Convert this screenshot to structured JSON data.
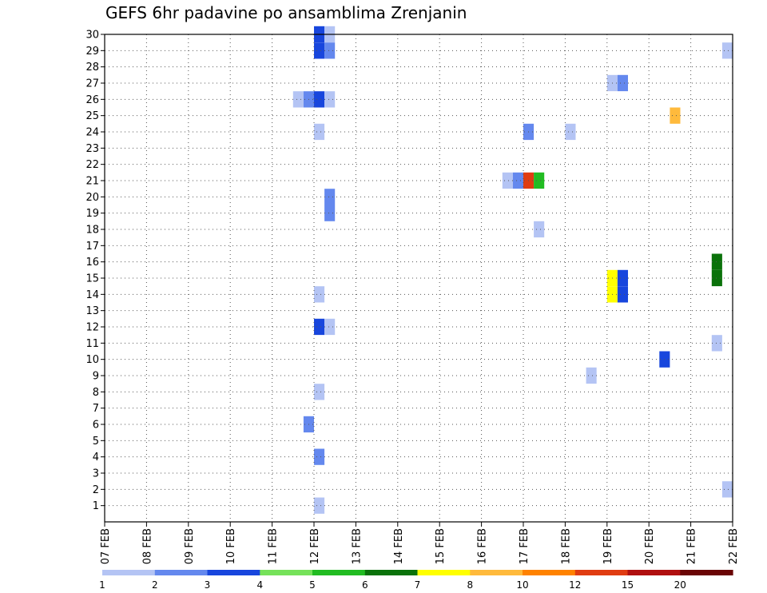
{
  "chart_data": {
    "type": "heatmap",
    "title": "GEFS 6hr padavine po ansamblima Zrenjanin",
    "x_tick_labels": [
      "07 FEB",
      "08 FEB",
      "09 FEB",
      "10 FEB",
      "11 FEB",
      "12 FEB",
      "13 FEB",
      "14 FEB",
      "15 FEB",
      "16 FEB",
      "17 FEB",
      "18 FEB",
      "19 FEB",
      "20 FEB",
      "21 FEB",
      "22 FEB"
    ],
    "y_tick_labels": [
      "1",
      "2",
      "3",
      "4",
      "5",
      "6",
      "7",
      "8",
      "9",
      "10",
      "11",
      "12",
      "13",
      "14",
      "15",
      "16",
      "17",
      "18",
      "19",
      "20",
      "21",
      "22",
      "23",
      "24",
      "25",
      "26",
      "27",
      "28",
      "29",
      "30"
    ],
    "x_range_days": [
      0,
      15
    ],
    "y_range_members": [
      0,
      30
    ],
    "grid": true,
    "colorbar": {
      "labels": [
        "1",
        "2",
        "3",
        "4",
        "5",
        "6",
        "7",
        "8",
        "10",
        "12",
        "15",
        "20"
      ],
      "colors": [
        "#b4c4f4",
        "#6488ee",
        "#1846dd",
        "#76e25a",
        "#22bc22",
        "#0a720a",
        "#ffff00",
        "#ffba3c",
        "#ff8200",
        "#e03c12",
        "#b01010",
        "#6a0505"
      ]
    },
    "cells": [
      {
        "m": 30,
        "d": 5.125,
        "c": 2
      },
      {
        "m": 30,
        "d": 5.375,
        "c": 0
      },
      {
        "m": 29,
        "d": 5.125,
        "c": 2
      },
      {
        "m": 29,
        "d": 5.375,
        "c": 1
      },
      {
        "m": 29,
        "d": 14.875,
        "c": 0
      },
      {
        "m": 27,
        "d": 12.125,
        "c": 0
      },
      {
        "m": 27,
        "d": 12.375,
        "c": 1
      },
      {
        "m": 26,
        "d": 4.625,
        "c": 0
      },
      {
        "m": 26,
        "d": 4.875,
        "c": 1
      },
      {
        "m": 26,
        "d": 5.125,
        "c": 2
      },
      {
        "m": 26,
        "d": 5.375,
        "c": 0
      },
      {
        "m": 25,
        "d": 13.625,
        "c": 7
      },
      {
        "m": 24,
        "d": 5.125,
        "c": 0
      },
      {
        "m": 24,
        "d": 10.125,
        "c": 1
      },
      {
        "m": 24,
        "d": 11.125,
        "c": 0
      },
      {
        "m": 21,
        "d": 9.625,
        "c": 0
      },
      {
        "m": 21,
        "d": 9.875,
        "c": 1
      },
      {
        "m": 21,
        "d": 10.125,
        "c": 9
      },
      {
        "m": 21,
        "d": 10.375,
        "c": 4
      },
      {
        "m": 20,
        "d": 5.375,
        "c": 1
      },
      {
        "m": 19,
        "d": 5.375,
        "c": 1
      },
      {
        "m": 18,
        "d": 10.375,
        "c": 0
      },
      {
        "m": 16,
        "d": 14.625,
        "c": 5
      },
      {
        "m": 15,
        "d": 12.125,
        "c": 6
      },
      {
        "m": 15,
        "d": 12.375,
        "c": 2
      },
      {
        "m": 15,
        "d": 14.625,
        "c": 5
      },
      {
        "m": 14,
        "d": 5.125,
        "c": 0
      },
      {
        "m": 14,
        "d": 12.125,
        "c": 6
      },
      {
        "m": 14,
        "d": 12.375,
        "c": 2
      },
      {
        "m": 12,
        "d": 5.125,
        "c": 2
      },
      {
        "m": 12,
        "d": 5.375,
        "c": 0
      },
      {
        "m": 11,
        "d": 14.625,
        "c": 0
      },
      {
        "m": 10,
        "d": 13.375,
        "c": 2
      },
      {
        "m": 9,
        "d": 11.625,
        "c": 0
      },
      {
        "m": 8,
        "d": 5.125,
        "c": 0
      },
      {
        "m": 6,
        "d": 4.875,
        "c": 1
      },
      {
        "m": 4,
        "d": 5.125,
        "c": 1
      },
      {
        "m": 2,
        "d": 14.875,
        "c": 0
      },
      {
        "m": 1,
        "d": 5.125,
        "c": 0
      }
    ]
  }
}
